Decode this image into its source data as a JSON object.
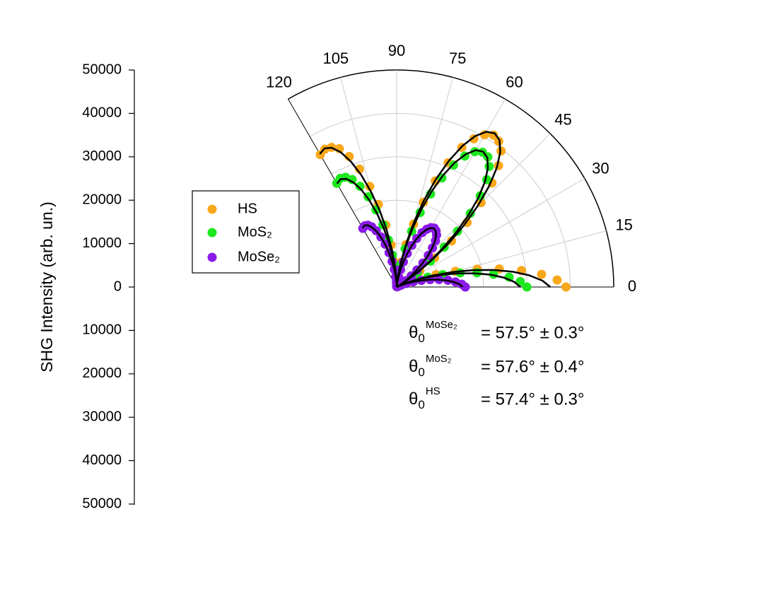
{
  "chart_data": {
    "type": "polar",
    "ylabel": "SHG Intensity (arb. un.)",
    "ylim": [
      -50000,
      50000
    ],
    "yticks": [
      50000,
      40000,
      30000,
      20000,
      10000,
      0,
      {
        "value": -10000,
        "label": "10000"
      },
      {
        "value": -20000,
        "label": "20000"
      },
      {
        "value": -30000,
        "label": "30000"
      },
      {
        "value": -40000,
        "label": "40000"
      },
      {
        "value": -50000,
        "label": "50000"
      }
    ],
    "thetalim": [
      0,
      120
    ],
    "thetaticks": [
      0,
      15,
      30,
      45,
      60,
      75,
      90,
      105,
      120
    ],
    "rlim": [
      0,
      50000
    ],
    "rticks": [
      10000,
      20000,
      30000,
      40000,
      50000
    ],
    "grid": true,
    "legend": "left",
    "theta": [
      0,
      2.5,
      5,
      7.5,
      10,
      12.5,
      15,
      17.5,
      20,
      22.5,
      25,
      27.5,
      30,
      32.5,
      35,
      37.5,
      40,
      42.5,
      45,
      47.5,
      50,
      52.5,
      55,
      57.5,
      60,
      62.5,
      65,
      67.5,
      70,
      72.5,
      75,
      77.5,
      80,
      82.5,
      85,
      87.5,
      90,
      92.5,
      95,
      97.5,
      100,
      102.5,
      105,
      107.5,
      110,
      112.5,
      115,
      117.5,
      120
    ],
    "series": [
      {
        "name": "HS",
        "color": "#f9a81c",
        "values": [
          39000,
          37000,
          33500,
          29000,
          24000,
          19000,
          14000,
          9500,
          5500,
          2500,
          800,
          200,
          900,
          3000,
          6500,
          11000,
          16500,
          22000,
          27500,
          32500,
          36500,
          39500,
          41000,
          41500,
          40500,
          38500,
          35500,
          31000,
          26000,
          20500,
          15000,
          10000,
          5800,
          2600,
          800,
          200,
          800,
          2600,
          5800,
          9800,
          14500,
          19500,
          24000,
          28500,
          32000,
          34500,
          35500,
          35800,
          35200
        ],
        "fit": [
          35400,
          33600,
          30700,
          27000,
          22600,
          18000,
          13400,
          9000,
          5300,
          2400,
          600,
          0,
          700,
          2800,
          6100,
          10500,
          15600,
          21000,
          26400,
          31500,
          35900,
          39200,
          41300,
          42000,
          41300,
          39200,
          35900,
          31500,
          26400,
          21000,
          15600,
          10500,
          6100,
          2800,
          700,
          0,
          600,
          2400,
          5300,
          9000,
          13400,
          18000,
          22600,
          27000,
          30700,
          33600,
          35400,
          36000,
          35400
        ]
      },
      {
        "name": "MoS₂",
        "color": "#1ee81e",
        "values": [
          30000,
          28500,
          26000,
          22500,
          18800,
          15000,
          11000,
          7500,
          4400,
          2000,
          600,
          200,
          800,
          2700,
          5800,
          9800,
          14300,
          19000,
          24000,
          28500,
          32300,
          35000,
          36600,
          36800,
          36000,
          34000,
          31000,
          27200,
          22800,
          18000,
          13300,
          9000,
          5200,
          2400,
          700,
          200,
          700,
          2100,
          4400,
          7400,
          11000,
          14700,
          18400,
          21800,
          24700,
          26800,
          27900,
          28200,
          27600
        ],
        "fit": [
          28500,
          27100,
          24800,
          21800,
          18200,
          14500,
          10800,
          7300,
          4200,
          1900,
          500,
          0,
          600,
          2500,
          5400,
          9300,
          13700,
          18500,
          23300,
          27800,
          31600,
          34500,
          36400,
          37000,
          36400,
          34500,
          31600,
          27800,
          23300,
          18500,
          13700,
          9300,
          5400,
          2500,
          600,
          0,
          500,
          1900,
          4100,
          7000,
          10400,
          14000,
          17600,
          21000,
          23900,
          26100,
          27500,
          28000,
          27500
        ]
      },
      {
        "name": "MoSe₂",
        "color": "#8a1ae8",
        "values": [
          15800,
          15000,
          13600,
          11900,
          9900,
          7900,
          5900,
          4000,
          2400,
          1100,
          400,
          100,
          400,
          1200,
          2500,
          4200,
          6100,
          8200,
          10300,
          12200,
          13900,
          15100,
          15800,
          16100,
          15800,
          15000,
          13800,
          12100,
          10200,
          8100,
          6000,
          4100,
          2400,
          1200,
          400,
          100,
          400,
          1200,
          2400,
          4100,
          6000,
          8100,
          10200,
          12100,
          13800,
          15000,
          15700,
          15900,
          15600
        ],
        "fit": [
          15200,
          14500,
          13200,
          11600,
          9700,
          7800,
          5800,
          3900,
          2300,
          1000,
          300,
          0,
          300,
          1100,
          2300,
          4000,
          5900,
          8000,
          10100,
          12000,
          13700,
          14900,
          15700,
          16000,
          15700,
          14900,
          13700,
          12000,
          10100,
          8000,
          5900,
          4000,
          2300,
          1100,
          300,
          0,
          300,
          1100,
          2300,
          4000,
          5900,
          8000,
          10100,
          12000,
          13700,
          14900,
          15700,
          16000,
          15700
        ]
      }
    ],
    "annotations": [
      {
        "symbol": "θ",
        "sub": "0",
        "sup": "MoSe₂",
        "text": "= 57.5° ± 0.3°"
      },
      {
        "symbol": "θ",
        "sub": "0",
        "sup": "MoS₂",
        "text": "= 57.6° ± 0.4°"
      },
      {
        "symbol": "θ",
        "sub": "0",
        "sup": "HS",
        "text": "= 57.4° ± 0.3°"
      }
    ]
  }
}
